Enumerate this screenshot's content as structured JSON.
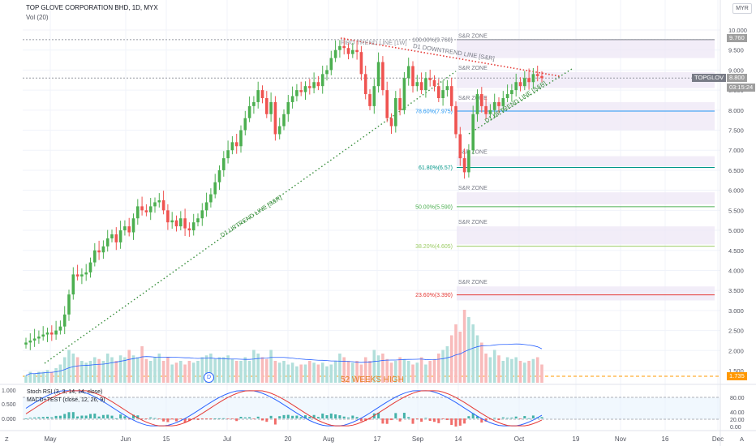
{
  "header": {
    "title": "TOP GLOVE CORPORATION BHD, 1D, MYX",
    "volume_label": "Vol (20)"
  },
  "currency": "MYR",
  "price_axis": {
    "ticks": [
      "10.000",
      "9.500",
      "9.000",
      "8.500",
      "8.000",
      "7.500",
      "7.000",
      "6.500",
      "6.000",
      "5.500",
      "5.000",
      "4.500",
      "4.000",
      "3.500",
      "3.000",
      "2.500",
      "2.000",
      "1.500"
    ],
    "tick_values": [
      10,
      9.5,
      9,
      8.5,
      8,
      7.5,
      7,
      6.5,
      6,
      5.5,
      5,
      4.5,
      4,
      3.5,
      3,
      2.5,
      2,
      1.5
    ],
    "high_label": "9.760",
    "ticker_label": "TOPGLOV",
    "last_label": "8.800",
    "countdown_label": "03:15:24",
    "low_label": "1.735"
  },
  "osc_axis": {
    "left_ticks": [
      "1.000",
      "0.500",
      "0.000"
    ],
    "right_ticks": [
      "80.00",
      "40.00",
      "20.00",
      "0.00"
    ]
  },
  "time_axis": {
    "labels": [
      "May",
      "Jun",
      "15",
      "Jul",
      "20",
      "Aug",
      "17",
      "Sep",
      "14",
      "Oct",
      "19",
      "Nov",
      "16",
      "Dec"
    ]
  },
  "corner_labels": {
    "left": "Z",
    "right": "A"
  },
  "annotations": {
    "fibo_trend": "FIBO TREND LINE [1W]",
    "downtrend": "D1 DOWNTREND LINE [S&R]",
    "uptrend_long": "D1 UPTREND LINE [S&R]",
    "uptrend_short": "D1 UPTREND LINE [S&R]",
    "week_high": "52 WEEKS HIGH",
    "event_marker": "D"
  },
  "zone_label": "S&R ZONE",
  "colors": {
    "up": "#26a69a",
    "up_body": "#4caf50",
    "down": "#ef5350",
    "vol_up": "#b2dfdb",
    "vol_down": "#f8bbbb",
    "zone_fill": "#ede7f6",
    "trend_green": "#388e3c",
    "trend_red": "#e53935",
    "stoch_k": "#2962ff",
    "stoch_d": "#e53935",
    "hline": "#131722"
  },
  "chart_data": {
    "type": "candlestick",
    "title": "TOP GLOVE CORPORATION BHD, 1D, MYX",
    "ylim": [
      1.5,
      10.2
    ],
    "fibonacci": [
      {
        "label": "100.00%(9.760)",
        "value": 9.76,
        "color": "#787b86"
      },
      {
        "label": "78.60%(7.975)",
        "value": 7.975,
        "color": "#2196f3"
      },
      {
        "label": "61.80%(6.57)",
        "value": 6.57,
        "color": "#009688"
      },
      {
        "label": "50.00%(5.590)",
        "value": 5.59,
        "color": "#4caf50"
      },
      {
        "label": "38.20%(4.605)",
        "value": 4.605,
        "color": "#9ccc65"
      },
      {
        "label": "23.60%(3.390)",
        "value": 3.39,
        "color": "#e53935"
      }
    ],
    "zones": [
      {
        "low": 9.3,
        "high": 9.75
      },
      {
        "low": 8.55,
        "high": 8.95
      },
      {
        "low": 7.5,
        "high": 8.2
      },
      {
        "low": 6.6,
        "high": 6.85
      },
      {
        "low": 5.65,
        "high": 5.95
      },
      {
        "low": 4.65,
        "high": 5.1
      },
      {
        "low": 3.25,
        "high": 3.6
      }
    ],
    "closes": [
      2.2,
      2.25,
      2.3,
      2.35,
      2.4,
      2.45,
      2.4,
      2.5,
      2.6,
      2.9,
      3.4,
      3.9,
      3.85,
      3.9,
      3.95,
      4.2,
      4.5,
      4.45,
      4.6,
      4.8,
      4.9,
      4.7,
      5.0,
      5.1,
      4.95,
      5.3,
      5.6,
      5.5,
      5.45,
      5.6,
      5.7,
      5.75,
      5.5,
      5.2,
      5.25,
      5.1,
      5.3,
      5.05,
      5.0,
      5.2,
      5.3,
      5.5,
      5.7,
      5.9,
      6.2,
      6.5,
      6.8,
      7.0,
      7.2,
      7.1,
      7.5,
      7.8,
      8.1,
      8.2,
      8.5,
      8.3,
      7.9,
      8.2,
      7.4,
      7.6,
      7.9,
      8.2,
      8.35,
      8.5,
      8.45,
      8.6,
      8.55,
      8.7,
      8.6,
      8.9,
      9.0,
      9.3,
      9.5,
      9.6,
      9.55,
      9.4,
      9.5,
      9.45,
      8.9,
      8.4,
      8.1,
      8.6,
      9.2,
      8.5,
      7.8,
      7.6,
      8.3,
      8.0,
      8.8,
      9.1,
      8.6,
      8.7,
      8.5,
      8.8,
      8.75,
      8.6,
      8.3,
      8.5,
      8.6,
      8.1,
      7.4,
      6.8,
      6.45,
      7.0,
      7.9,
      8.4,
      8.1,
      7.9,
      8.0,
      8.2,
      8.1,
      8.3,
      8.4,
      8.5,
      8.7,
      8.6,
      8.8,
      8.7,
      8.9,
      8.85,
      8.8
    ],
    "volumes": [
      0.2,
      0.3,
      0.25,
      0.3,
      0.3,
      0.35,
      0.3,
      0.4,
      0.5,
      0.7,
      0.9,
      0.8,
      0.7,
      0.6,
      0.55,
      0.6,
      0.7,
      0.65,
      0.6,
      0.8,
      0.7,
      0.6,
      0.75,
      0.7,
      0.9,
      0.75,
      0.7,
      1.0,
      0.65,
      0.6,
      0.7,
      0.8,
      0.6,
      0.7,
      0.5,
      0.55,
      0.6,
      0.5,
      0.6,
      0.55,
      0.6,
      0.7,
      0.75,
      0.8,
      0.65,
      0.7,
      0.7,
      0.75,
      0.65,
      0.6,
      0.6,
      0.7,
      0.6,
      0.9,
      0.8,
      0.7,
      0.65,
      0.9,
      0.6,
      0.55,
      0.6,
      0.5,
      0.55,
      0.45,
      0.5,
      0.5,
      0.6,
      0.55,
      0.5,
      0.55,
      0.45,
      0.5,
      0.6,
      0.8,
      0.7,
      0.6,
      0.55,
      0.6,
      0.5,
      0.7,
      0.6,
      0.9,
      0.75,
      0.8,
      0.65,
      0.55,
      0.6,
      0.7,
      0.65,
      0.6,
      0.5,
      0.55,
      0.7,
      0.5,
      0.6,
      0.65,
      0.8,
      0.9,
      1.0,
      1.3,
      1.6,
      1.4,
      2.0,
      1.8,
      1.6,
      1.3,
      1.1,
      0.8,
      0.7,
      0.9,
      0.75,
      0.6,
      0.7,
      0.65,
      0.7,
      0.6,
      0.55,
      0.6,
      0.65,
      0.7,
      0.5
    ]
  },
  "oscillator": {
    "stoch_label": "Stoch RSI (3, 3, 14, 14, close)",
    "macd_label": "MACD+TEST (close, 12, 26, 9)"
  }
}
